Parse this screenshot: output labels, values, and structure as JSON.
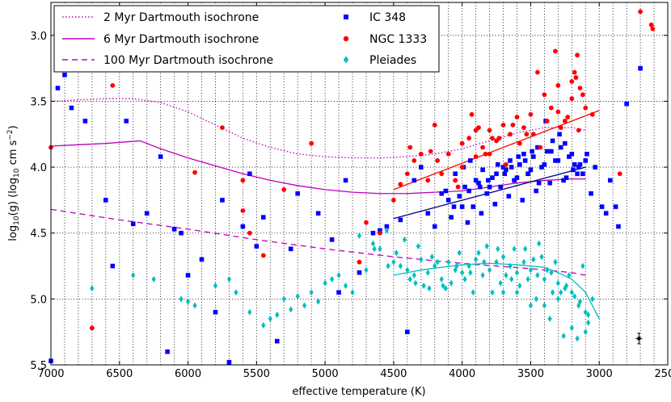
{
  "chart_data": {
    "type": "scatter",
    "title": "",
    "xlabel": "effective temperature (K)",
    "ylabel_main": "log",
    "ylabel_sub": "10",
    "ylabel_mid": "(g) (log",
    "ylabel_sub2": "10",
    "ylabel_units": " cm s",
    "ylabel_exp": "−2",
    "ylabel_close": ")",
    "xlim": [
      7000,
      2500
    ],
    "ylim": [
      5.5,
      2.75
    ],
    "x_ticks": [
      7000,
      6500,
      6000,
      5500,
      5000,
      4500,
      4000,
      3500,
      3000,
      2500
    ],
    "x_tick_labels": [
      "7000",
      "6500",
      "6000",
      "5500",
      "5000",
      "4500",
      "4000",
      "3500",
      "3000",
      "2500"
    ],
    "y_ticks": [
      3.0,
      3.5,
      4.0,
      4.5,
      5.0,
      5.5
    ],
    "y_tick_labels": [
      "3.0",
      "3.5",
      "4.0",
      "4.5",
      "5.0",
      "5.5"
    ],
    "minor_x_step": 100,
    "grid": true,
    "legend_placement": "top",
    "colors": {
      "ic348": "#0000ff",
      "ngc1333": "#ff0000",
      "pleiades": "#00bfbf",
      "isochrone": "#bf00bf"
    },
    "lines": [
      {
        "name": "2 Myr Dartmouth isochrone",
        "style": "dotted",
        "x": [
          7000,
          6800,
          6600,
          6400,
          6200,
          6000,
          5800,
          5600,
          5400,
          5200,
          5000,
          4800,
          4600,
          4400,
          4200,
          4000,
          3800,
          3600,
          3400,
          3200,
          3100
        ],
        "y": [
          3.5,
          3.49,
          3.48,
          3.48,
          3.51,
          3.58,
          3.68,
          3.78,
          3.85,
          3.9,
          3.92,
          3.93,
          3.93,
          3.92,
          3.9,
          3.86,
          3.8,
          3.74,
          3.7,
          3.7,
          3.72
        ]
      },
      {
        "name": "6 Myr Dartmouth isochrone",
        "style": "solid",
        "x": [
          7000,
          6800,
          6600,
          6350,
          6200,
          6000,
          5800,
          5600,
          5400,
          5200,
          5000,
          4800,
          4600,
          4400,
          4200,
          4000,
          3800,
          3600,
          3400,
          3200,
          3100
        ],
        "y": [
          3.84,
          3.83,
          3.82,
          3.8,
          3.86,
          3.93,
          3.99,
          4.05,
          4.1,
          4.14,
          4.17,
          4.19,
          4.2,
          4.2,
          4.19,
          4.18,
          4.15,
          4.12,
          4.1,
          4.09,
          4.09
        ]
      },
      {
        "name": "100 Myr Dartmouth isochrone",
        "style": "dashed",
        "x": [
          7000,
          6500,
          6000,
          5500,
          5000,
          4500,
          4000,
          3500,
          3200,
          3100
        ],
        "y": [
          4.32,
          4.4,
          4.47,
          4.55,
          4.62,
          4.68,
          4.73,
          4.77,
          4.8,
          4.82
        ]
      }
    ],
    "fits": [
      {
        "name": "NGC 1333 fit",
        "color": "#ff0000",
        "x": [
          4500,
          3000
        ],
        "y": [
          4.17,
          3.57
        ]
      },
      {
        "name": "IC 348 fit",
        "color": "#00008b",
        "x": [
          4500,
          3100
        ],
        "y": [
          4.39,
          4.0
        ]
      },
      {
        "name": "Pleiades fit",
        "color": "#00bfbf",
        "x": [
          4500,
          4300,
          4000,
          3800,
          3600,
          3400,
          3300,
          3200,
          3100,
          3000
        ],
        "y": [
          4.82,
          4.78,
          4.74,
          4.73,
          4.74,
          4.76,
          4.8,
          4.85,
          4.95,
          5.15
        ]
      }
    ],
    "series": [
      {
        "name": "IC 348",
        "marker": "square",
        "x": [
          6950,
          7000,
          6850,
          6750,
          6600,
          6450,
          6200,
          6100,
          5900,
          5600,
          5500,
          5350,
          5200,
          5050,
          6300,
          6550,
          6150,
          5800,
          5700,
          4900,
          4750,
          4650,
          4550,
          6900,
          6400,
          6000,
          5750,
          5450,
          5250,
          4850,
          6050,
          5550,
          4950,
          4400,
          4250,
          4150,
          4100,
          4050,
          4000,
          3950,
          3900,
          3850,
          3800,
          3750,
          3700,
          3650,
          3600,
          3550,
          3500,
          3450,
          3400,
          3350,
          3300,
          3250,
          3200,
          3150,
          3100,
          4350,
          4200,
          4080,
          4020,
          3980,
          3920,
          3880,
          3820,
          3780,
          3720,
          3680,
          3620,
          3580,
          3520,
          3480,
          3420,
          3380,
          3320,
          3280,
          3220,
          3180,
          3120,
          3060,
          2980,
          2920,
          2860,
          2800,
          2700,
          3960,
          3860,
          3760,
          3660,
          3560,
          3460,
          3360,
          3260,
          3160,
          4120,
          4060,
          3990,
          3940,
          3870,
          3810,
          3740,
          3690,
          3640,
          3590,
          3540,
          3490,
          3440,
          3390,
          3340,
          3290,
          3240,
          3190,
          3140,
          3090,
          4300,
          4450,
          4600,
          3030,
          2950,
          2880
        ],
        "y": [
          3.4,
          5.47,
          3.55,
          3.65,
          4.25,
          3.65,
          3.92,
          4.47,
          4.7,
          4.45,
          4.6,
          5.32,
          4.2,
          4.35,
          4.35,
          4.75,
          5.4,
          5.1,
          5.48,
          4.95,
          4.8,
          4.5,
          4.45,
          3.3,
          4.43,
          4.82,
          4.25,
          4.38,
          4.62,
          4.1,
          4.5,
          4.05,
          4.55,
          5.25,
          4.35,
          4.2,
          4.25,
          4.05,
          4.3,
          4.18,
          4.1,
          4.02,
          4.15,
          4.05,
          4.0,
          3.95,
          4.08,
          3.9,
          4.02,
          3.85,
          3.98,
          3.88,
          3.95,
          3.82,
          3.9,
          4.0,
          3.95,
          4.1,
          4.45,
          4.38,
          4.22,
          4.15,
          4.3,
          4.12,
          4.2,
          4.08,
          4.15,
          4.02,
          4.1,
          3.98,
          4.05,
          3.92,
          4.0,
          3.88,
          3.95,
          3.85,
          3.92,
          3.98,
          4.05,
          4.2,
          4.3,
          4.1,
          4.45,
          3.52,
          3.25,
          4.42,
          4.35,
          4.28,
          4.22,
          4.25,
          4.18,
          4.12,
          4.1,
          4.05,
          4.18,
          4.3,
          4.0,
          3.95,
          4.15,
          4.1,
          3.98,
          4.05,
          4.0,
          3.92,
          3.95,
          3.88,
          4.12,
          3.65,
          3.8,
          3.75,
          4.08,
          4.02,
          3.98,
          3.9,
          4.0,
          4.4,
          4.48,
          4.0,
          4.35,
          4.3
        ]
      },
      {
        "name": "NGC 1333",
        "marker": "circle",
        "x": [
          6550,
          7000,
          6700,
          5750,
          5100,
          5950,
          5600,
          5550,
          5300,
          5600,
          5450,
          4750,
          4600,
          4700,
          4500,
          4450,
          4400,
          4350,
          4300,
          4250,
          4200,
          4150,
          4100,
          4050,
          4000,
          3950,
          3900,
          3850,
          3800,
          3750,
          3700,
          3650,
          3600,
          3550,
          3500,
          3450,
          3400,
          3350,
          3300,
          3250,
          3200,
          3150,
          3100,
          3050,
          2850,
          2620,
          2610,
          2700,
          3180,
          3170,
          3160,
          3140,
          3120,
          3320,
          3300,
          4380,
          4180,
          3880,
          3780,
          3680,
          3580,
          3480,
          3380,
          4230,
          4030,
          3930,
          3830,
          3730,
          3630,
          3530,
          3430,
          3230,
          3200,
          3280,
          4000,
          3900,
          3800
        ],
        "y": [
          3.38,
          3.85,
          5.22,
          3.7,
          3.82,
          4.04,
          4.33,
          4.5,
          4.17,
          4.1,
          4.67,
          4.72,
          4.5,
          4.42,
          4.25,
          4.13,
          4.05,
          3.95,
          3.9,
          4.1,
          3.68,
          4.05,
          3.9,
          4.1,
          4.0,
          3.78,
          3.92,
          3.85,
          3.72,
          3.8,
          3.68,
          3.75,
          3.62,
          3.7,
          3.6,
          3.28,
          3.45,
          3.55,
          3.38,
          3.65,
          3.48,
          3.72,
          3.55,
          3.6,
          4.05,
          2.92,
          2.95,
          2.82,
          3.28,
          3.32,
          3.15,
          3.4,
          3.45,
          3.12,
          3.58,
          3.85,
          3.95,
          3.7,
          3.78,
          3.98,
          3.82,
          3.75,
          3.65,
          3.88,
          4.15,
          3.6,
          3.9,
          3.78,
          3.68,
          3.75,
          3.85,
          3.62,
          3.35,
          3.7,
          3.82,
          3.72,
          3.9
        ]
      },
      {
        "name": "Pleiades",
        "marker": "diamond",
        "x": [
          6700,
          6400,
          6250,
          6050,
          6000,
          5950,
          5800,
          5700,
          5650,
          5550,
          5450,
          5400,
          5350,
          5300,
          5250,
          5200,
          5150,
          5100,
          5050,
          5000,
          4950,
          4900,
          4850,
          4800,
          4750,
          4700,
          4650,
          4600,
          4550,
          4500,
          4450,
          4400,
          4350,
          4300,
          4250,
          4200,
          4150,
          4100,
          4050,
          4000,
          3950,
          3900,
          3850,
          3800,
          3750,
          3700,
          3650,
          3600,
          3550,
          3500,
          3450,
          3400,
          3350,
          3300,
          3250,
          3200,
          3150,
          3100,
          3050,
          4480,
          4380,
          4280,
          4180,
          4080,
          3980,
          3880,
          3780,
          3680,
          3580,
          3480,
          3380,
          3280,
          3180,
          4420,
          4320,
          4220,
          4120,
          4020,
          3920,
          3820,
          3720,
          3620,
          3520,
          3420,
          3320,
          3220,
          3120,
          3080,
          3140,
          3240,
          3340,
          3440,
          3540,
          3640,
          3740,
          3840,
          3940,
          4040,
          4140,
          4240,
          4340,
          4540,
          4640,
          3300,
          3500,
          3700,
          3200,
          3400,
          3600,
          3100,
          3080,
          3160,
          3260,
          3360,
          3460
        ],
        "y": [
          4.92,
          4.82,
          4.85,
          5.0,
          5.02,
          5.05,
          4.9,
          4.85,
          4.95,
          5.1,
          5.2,
          5.15,
          5.12,
          5.0,
          5.08,
          4.98,
          5.05,
          4.95,
          5.02,
          4.88,
          4.85,
          4.82,
          4.9,
          4.95,
          4.52,
          4.78,
          4.58,
          4.62,
          4.48,
          4.72,
          4.75,
          4.78,
          4.82,
          4.7,
          4.8,
          4.75,
          4.85,
          4.72,
          4.78,
          4.8,
          4.75,
          4.7,
          4.82,
          4.78,
          4.72,
          4.68,
          4.75,
          4.8,
          4.72,
          4.78,
          4.82,
          4.85,
          4.8,
          4.88,
          4.92,
          4.95,
          5.05,
          5.1,
          5.0,
          4.65,
          4.85,
          4.9,
          4.72,
          4.88,
          4.85,
          4.65,
          4.95,
          4.82,
          4.9,
          4.7,
          4.78,
          4.95,
          4.98,
          4.55,
          4.6,
          4.68,
          4.92,
          4.65,
          4.95,
          4.6,
          4.88,
          4.62,
          4.85,
          4.68,
          4.72,
          4.82,
          4.75,
          5.12,
          5.02,
          4.9,
          4.95,
          4.58,
          4.62,
          4.85,
          4.62,
          4.72,
          4.8,
          4.75,
          4.9,
          4.92,
          4.88,
          4.75,
          4.62,
          5.0,
          5.05,
          4.95,
          5.22,
          5.05,
          4.95,
          5.25,
          5.18,
          5.3,
          5.28,
          5.15,
          5.0
        ]
      }
    ],
    "error_bar": {
      "x": 2710,
      "y": 5.3,
      "xerr": 25,
      "yerr": 0.04
    }
  }
}
